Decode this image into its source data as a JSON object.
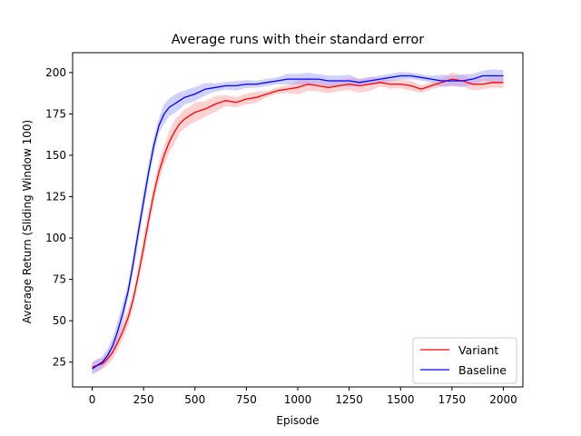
{
  "chart_data": {
    "type": "line",
    "title": "Average runs with their standard error",
    "xlabel": "Episode",
    "ylabel": "Average Return (Sliding Window 100)",
    "xlim": [
      -95,
      2095
    ],
    "ylim": [
      10,
      212
    ],
    "xticks": [
      0,
      250,
      500,
      750,
      1000,
      1250,
      1500,
      1750,
      2000
    ],
    "yticks": [
      25,
      50,
      75,
      100,
      125,
      150,
      175,
      200
    ],
    "grid": false,
    "legend_position": "lower-right",
    "series": [
      {
        "name": "Variant",
        "color": "#ff0000",
        "band_color": "#ff9999",
        "x": [
          0,
          25,
          50,
          75,
          100,
          125,
          150,
          175,
          200,
          225,
          250,
          275,
          300,
          325,
          350,
          375,
          400,
          425,
          450,
          475,
          500,
          550,
          600,
          650,
          700,
          750,
          800,
          850,
          900,
          950,
          1000,
          1050,
          1100,
          1150,
          1200,
          1250,
          1300,
          1350,
          1400,
          1450,
          1500,
          1550,
          1600,
          1650,
          1700,
          1750,
          1800,
          1850,
          1900,
          1950,
          2000
        ],
        "y": [
          22,
          23,
          24,
          27,
          31,
          37,
          44,
          52,
          63,
          78,
          94,
          111,
          127,
          140,
          150,
          158,
          164,
          169,
          172,
          174,
          176,
          178,
          181,
          183,
          182,
          184,
          185,
          187,
          189,
          190,
          191,
          193,
          192,
          191,
          192,
          193,
          192,
          193,
          194,
          193,
          193,
          192,
          190,
          192,
          194,
          196,
          195,
          193,
          193,
          194,
          194
        ],
        "err": [
          3,
          3,
          3,
          3,
          4,
          4,
          4,
          5,
          5,
          5,
          6,
          6,
          6,
          6,
          6,
          6,
          6,
          5,
          5,
          5,
          5,
          4,
          4,
          4,
          4,
          4,
          4,
          3,
          3,
          3,
          3,
          3,
          3,
          3,
          3,
          3,
          3,
          3,
          3,
          3,
          3,
          3,
          3,
          3,
          3,
          3,
          3,
          3,
          3,
          3,
          3
        ]
      },
      {
        "name": "Baseline",
        "color": "#0000ff",
        "band_color": "#9999ff",
        "x": [
          0,
          25,
          50,
          75,
          100,
          125,
          150,
          175,
          200,
          225,
          250,
          275,
          300,
          325,
          350,
          375,
          400,
          425,
          450,
          475,
          500,
          550,
          600,
          650,
          700,
          750,
          800,
          850,
          900,
          950,
          1000,
          1050,
          1100,
          1150,
          1200,
          1250,
          1300,
          1350,
          1400,
          1450,
          1500,
          1550,
          1600,
          1650,
          1700,
          1750,
          1800,
          1850,
          1900,
          1950,
          2000
        ],
        "y": [
          21,
          23,
          25,
          29,
          35,
          44,
          55,
          68,
          85,
          104,
          122,
          140,
          156,
          168,
          175,
          179,
          181,
          183,
          185,
          186,
          187,
          190,
          191,
          192,
          192,
          193,
          193,
          194,
          195,
          196,
          196,
          196,
          196,
          195,
          195,
          195,
          194,
          195,
          196,
          197,
          198,
          198,
          197,
          196,
          195,
          195,
          195,
          196,
          198,
          198,
          198
        ],
        "err": [
          3,
          3,
          3,
          4,
          4,
          5,
          5,
          5,
          6,
          6,
          6,
          6,
          6,
          5,
          5,
          5,
          5,
          5,
          4,
          4,
          4,
          4,
          3,
          3,
          3,
          3,
          3,
          3,
          3,
          3,
          3,
          3,
          3,
          3,
          3,
          3,
          3,
          3,
          3,
          3,
          3,
          3,
          3,
          3,
          3,
          3,
          3,
          3,
          3,
          3,
          3
        ]
      }
    ]
  }
}
